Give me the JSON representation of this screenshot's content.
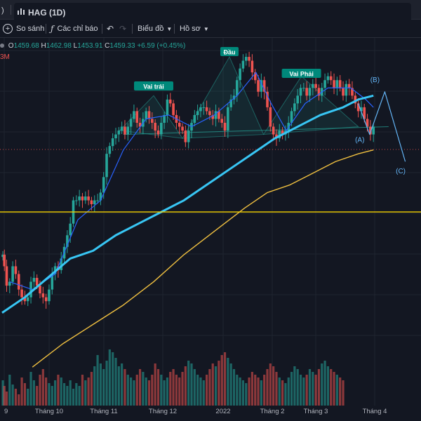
{
  "tab": {
    "prev_fragment": ")",
    "title": "HAG (1D)"
  },
  "toolbar": {
    "compare": "So sánh",
    "indicators": "Các chỉ báo",
    "chart_type": "Biểu đồ",
    "profile": "Hồ sơ"
  },
  "legend": {
    "o_label": "O",
    "o": "1459.68",
    "h_label": "H",
    "h": "1462.98",
    "l_label": "L",
    "l": "1453.91",
    "c_label": "C",
    "c": "1459.33",
    "change": "+6.59 (+0.45%)",
    "vol_fragment": "3M"
  },
  "colors": {
    "up": "#26a69a",
    "down": "#ef5350",
    "ma_fast": "#2962ff",
    "ma_mid": "#38c6f4",
    "ma_slow": "#f0c040",
    "pattern": "#64b5f6",
    "label_bg": "#00897b",
    "hline": "#f5d100"
  },
  "chart_data": {
    "type": "candlestick",
    "x_tick_labels": [
      "9",
      "Tháng 10",
      "Tháng 11",
      "Tháng 12",
      "2022",
      "Tháng 2",
      "Tháng 3",
      "Tháng 4"
    ],
    "pattern_labels": {
      "left_shoulder": "Vai trái",
      "head": "Đầu",
      "right_shoulder": "Vai Phải",
      "wave_a": "(A)",
      "wave_b": "(B)",
      "wave_c": "(C)"
    },
    "points": [
      {
        "d": 1,
        "c": 363
      },
      {
        "d": 3,
        "c": 360
      },
      {
        "d": 6,
        "c": 355
      },
      {
        "d": 10,
        "c": 356
      },
      {
        "d": 14,
        "c": 360
      },
      {
        "d": 18,
        "c": 358
      },
      {
        "d": 22,
        "c": 354
      },
      {
        "d": 26,
        "c": 352
      },
      {
        "d": 30,
        "c": 351
      },
      {
        "d": 34,
        "c": 352
      },
      {
        "d": 38,
        "c": 356
      },
      {
        "d": 42,
        "c": 357
      },
      {
        "d": 46,
        "c": 355
      },
      {
        "d": 50,
        "c": 353
      },
      {
        "d": 54,
        "c": 352
      },
      {
        "d": 58,
        "c": 351
      },
      {
        "d": 62,
        "c": 354
      },
      {
        "d": 66,
        "c": 358
      },
      {
        "d": 70,
        "c": 360
      },
      {
        "d": 74,
        "c": 359
      },
      {
        "d": 78,
        "c": 362
      },
      {
        "d": 82,
        "c": 365
      },
      {
        "d": 86,
        "c": 368
      },
      {
        "d": 90,
        "c": 371
      },
      {
        "d": 94,
        "c": 377
      },
      {
        "d": 98,
        "c": 377
      },
      {
        "d": 102,
        "c": 378
      },
      {
        "d": 106,
        "c": 377
      },
      {
        "d": 110,
        "c": 378
      },
      {
        "d": 114,
        "c": 377
      },
      {
        "d": 118,
        "c": 376
      },
      {
        "d": 122,
        "c": 377
      },
      {
        "d": 126,
        "c": 377
      },
      {
        "d": 130,
        "c": 379
      },
      {
        "d": 134,
        "c": 383
      },
      {
        "d": 138,
        "c": 389
      },
      {
        "d": 142,
        "c": 391
      },
      {
        "d": 146,
        "c": 393
      },
      {
        "d": 150,
        "c": 394
      },
      {
        "d": 154,
        "c": 395
      },
      {
        "d": 158,
        "c": 396
      },
      {
        "d": 162,
        "c": 394
      },
      {
        "d": 166,
        "c": 396
      },
      {
        "d": 170,
        "c": 398
      },
      {
        "d": 174,
        "c": 400
      },
      {
        "d": 178,
        "c": 397
      },
      {
        "d": 182,
        "c": 396
      },
      {
        "d": 186,
        "c": 398
      },
      {
        "d": 190,
        "c": 400
      },
      {
        "d": 194,
        "c": 398
      },
      {
        "d": 198,
        "c": 397
      },
      {
        "d": 202,
        "c": 395
      },
      {
        "d": 206,
        "c": 394
      },
      {
        "d": 210,
        "c": 397
      },
      {
        "d": 214,
        "c": 399
      },
      {
        "d": 218,
        "c": 403
      },
      {
        "d": 222,
        "c": 402
      },
      {
        "d": 226,
        "c": 399
      },
      {
        "d": 230,
        "c": 397
      },
      {
        "d": 234,
        "c": 396
      },
      {
        "d": 238,
        "c": 395
      },
      {
        "d": 242,
        "c": 392
      },
      {
        "d": 246,
        "c": 395
      },
      {
        "d": 250,
        "c": 397
      },
      {
        "d": 254,
        "c": 399
      },
      {
        "d": 258,
        "c": 400
      },
      {
        "d": 262,
        "c": 401
      },
      {
        "d": 266,
        "c": 401
      },
      {
        "d": 270,
        "c": 400
      },
      {
        "d": 274,
        "c": 399
      },
      {
        "d": 278,
        "c": 398
      },
      {
        "d": 282,
        "c": 400
      },
      {
        "d": 286,
        "c": 398
      },
      {
        "d": 290,
        "c": 397
      },
      {
        "d": 294,
        "c": 395
      },
      {
        "d": 298,
        "c": 401
      },
      {
        "d": 302,
        "c": 403
      },
      {
        "d": 306,
        "c": 404
      },
      {
        "d": 310,
        "c": 408
      },
      {
        "d": 314,
        "c": 411
      },
      {
        "d": 318,
        "c": 413
      },
      {
        "d": 322,
        "c": 414
      },
      {
        "d": 326,
        "c": 413
      },
      {
        "d": 330,
        "c": 410
      },
      {
        "d": 334,
        "c": 408
      },
      {
        "d": 338,
        "c": 405
      },
      {
        "d": 342,
        "c": 408
      },
      {
        "d": 346,
        "c": 405
      },
      {
        "d": 350,
        "c": 401
      },
      {
        "d": 354,
        "c": 396
      },
      {
        "d": 358,
        "c": 394
      },
      {
        "d": 362,
        "c": 393
      },
      {
        "d": 366,
        "c": 395
      },
      {
        "d": 370,
        "c": 394
      },
      {
        "d": 374,
        "c": 395
      },
      {
        "d": 378,
        "c": 397
      },
      {
        "d": 382,
        "c": 400
      },
      {
        "d": 386,
        "c": 402
      },
      {
        "d": 390,
        "c": 404
      },
      {
        "d": 394,
        "c": 406
      },
      {
        "d": 398,
        "c": 406
      },
      {
        "d": 402,
        "c": 404
      },
      {
        "d": 406,
        "c": 406
      },
      {
        "d": 410,
        "c": 407
      },
      {
        "d": 414,
        "c": 406
      },
      {
        "d": 418,
        "c": 404
      },
      {
        "d": 422,
        "c": 406
      },
      {
        "d": 426,
        "c": 408
      },
      {
        "d": 430,
        "c": 409
      },
      {
        "d": 434,
        "c": 408
      },
      {
        "d": 438,
        "c": 406
      },
      {
        "d": 442,
        "c": 408
      },
      {
        "d": 446,
        "c": 406
      },
      {
        "d": 450,
        "c": 404
      },
      {
        "d": 454,
        "c": 407
      },
      {
        "d": 458,
        "c": 406
      },
      {
        "d": 462,
        "c": 404
      },
      {
        "d": 466,
        "c": 402
      },
      {
        "d": 470,
        "c": 400
      },
      {
        "d": 474,
        "c": 401
      },
      {
        "d": 478,
        "c": 398
      },
      {
        "d": 482,
        "c": 396
      },
      {
        "d": 486,
        "c": 394
      },
      {
        "d": 490,
        "c": 396
      }
    ],
    "ma_fast": [
      [
        10,
        356
      ],
      [
        40,
        354
      ],
      [
        70,
        358
      ],
      [
        100,
        372
      ],
      [
        130,
        377
      ],
      [
        160,
        390
      ],
      [
        190,
        398
      ],
      [
        220,
        399
      ],
      [
        250,
        396
      ],
      [
        280,
        399
      ],
      [
        310,
        404
      ],
      [
        335,
        410
      ],
      [
        355,
        402
      ],
      [
        375,
        395
      ],
      [
        400,
        402
      ],
      [
        430,
        406
      ],
      [
        460,
        406
      ],
      [
        480,
        403
      ],
      [
        490,
        401
      ]
    ],
    "ma_mid": [
      [
        0,
        348
      ],
      [
        30,
        352
      ],
      [
        60,
        357
      ],
      [
        90,
        362
      ],
      [
        120,
        364
      ],
      [
        150,
        368
      ],
      [
        180,
        371
      ],
      [
        210,
        374
      ],
      [
        240,
        377
      ],
      [
        270,
        381
      ],
      [
        300,
        385
      ],
      [
        330,
        389
      ],
      [
        360,
        393
      ],
      [
        390,
        396
      ],
      [
        420,
        399
      ],
      [
        450,
        401
      ],
      [
        470,
        403
      ],
      [
        490,
        404
      ]
    ],
    "ma_slow": [
      [
        40,
        334
      ],
      [
        80,
        340
      ],
      [
        120,
        345
      ],
      [
        160,
        350
      ],
      [
        200,
        356
      ],
      [
        240,
        363
      ],
      [
        280,
        369
      ],
      [
        320,
        375
      ],
      [
        350,
        379
      ],
      [
        380,
        381
      ],
      [
        410,
        384
      ],
      [
        440,
        387
      ],
      [
        470,
        389
      ],
      [
        490,
        390
      ]
    ],
    "hline": 374,
    "neckline": [
      [
        160,
        394
      ],
      [
        510,
        396
      ]
    ],
    "abc_wave": [
      [
        470,
        402
      ],
      [
        485,
        394
      ],
      [
        505,
        405
      ],
      [
        532,
        387
      ]
    ],
    "volume": [
      18,
      14,
      10,
      22,
      15,
      12,
      8,
      20,
      16,
      12,
      24,
      18,
      14,
      22,
      26,
      20,
      16,
      14,
      18,
      22,
      20,
      16,
      14,
      18,
      12,
      16,
      14,
      22,
      18,
      20,
      24,
      28,
      36,
      30,
      26,
      32,
      40,
      38,
      34,
      28,
      30,
      26,
      22,
      20,
      18,
      22,
      26,
      24,
      20,
      18,
      22,
      30,
      26,
      22,
      18,
      20,
      24,
      26,
      22,
      20,
      24,
      28,
      32,
      30,
      26,
      22,
      20,
      18,
      22,
      26,
      30,
      28,
      32,
      36,
      38,
      34,
      30,
      26,
      22,
      20,
      18,
      16,
      20,
      24,
      22,
      20,
      18,
      22,
      26,
      30,
      28,
      24,
      20,
      18,
      16,
      20,
      24,
      28,
      26,
      22,
      20,
      22,
      26,
      24,
      22,
      26,
      30,
      32,
      28,
      26,
      24,
      22,
      20,
      18
    ]
  }
}
